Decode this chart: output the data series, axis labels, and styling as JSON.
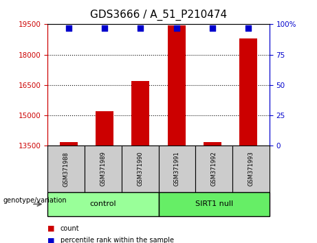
{
  "title": "GDS3666 / A_51_P210474",
  "samples": [
    "GSM371988",
    "GSM371989",
    "GSM371990",
    "GSM371991",
    "GSM371992",
    "GSM371993"
  ],
  "bar_values": [
    13700,
    15200,
    16700,
    19450,
    13700,
    18800
  ],
  "bar_bottom": 13500,
  "ylim": [
    13500,
    19500
  ],
  "yticks_left": [
    13500,
    15000,
    16500,
    18000,
    19500
  ],
  "yticks_right": [
    0,
    25,
    50,
    75,
    100
  ],
  "yticks_right_pos": [
    13500,
    15000,
    16500,
    18000,
    19500
  ],
  "bar_color": "#cc0000",
  "dot_color": "#0000cc",
  "grid_lines": [
    15000,
    16500,
    18000
  ],
  "groups": [
    {
      "label": "control",
      "indices": [
        0,
        1,
        2
      ],
      "color": "#99ff99"
    },
    {
      "label": "SIRT1 null",
      "indices": [
        3,
        4,
        5
      ],
      "color": "#66ee66"
    }
  ],
  "genotype_label": "genotype/variation",
  "legend_count_label": "count",
  "legend_pct_label": "percentile rank within the sample",
  "background_color": "#ffffff",
  "plot_bg_color": "#ffffff",
  "tick_label_color_left": "#cc0000",
  "tick_label_color_right": "#0000cc",
  "bar_width": 0.5,
  "dot_size": 35,
  "dot_value": 19300,
  "box_facecolor": "#cccccc",
  "title_fontsize": 11
}
